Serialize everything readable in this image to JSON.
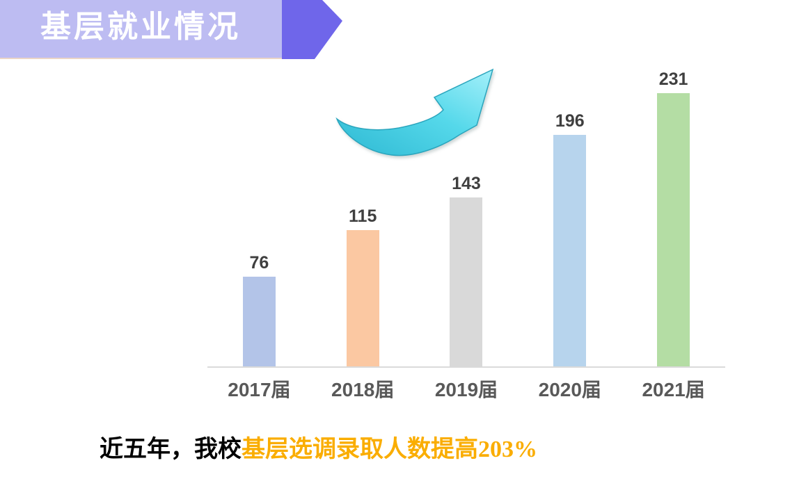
{
  "title_banner": {
    "text": "基层就业情况",
    "bg_color": "#BDBCF2",
    "arrow_color": "#6F66EA",
    "underline_color": "#EBD5C6",
    "text_color": "#FFFFFF"
  },
  "chart_data": {
    "type": "bar",
    "categories": [
      "2017届",
      "2018届",
      "2019届",
      "2020届",
      "2021届"
    ],
    "values": [
      76,
      115,
      143,
      196,
      231
    ],
    "bar_colors": [
      "#B3C4E8",
      "#FBC8A2",
      "#D9D9D9",
      "#B7D4ED",
      "#B4DDA4"
    ],
    "title": "",
    "xlabel": "",
    "ylabel": "",
    "ylim": [
      0,
      310
    ],
    "grid": false,
    "legend": false,
    "data_labels": true,
    "data_label_color": "#3F3F3F",
    "axis_label_color": "#595959",
    "baseline_color": "#DADADA"
  },
  "decorations": {
    "growth_arrow_icon": "upward-trend-swoosh-arrow",
    "arrow_gradient_start": "#2EB9D3",
    "arrow_gradient_mid": "#55D8EA",
    "arrow_gradient_end": "#A5F0FA",
    "arrow_outline": "#2AA5BD"
  },
  "caption": {
    "prefix": "近五年，我校",
    "highlight": "基层选调录取人数提高203%",
    "prefix_color": "#000000",
    "highlight_color": "#FAAD00"
  }
}
